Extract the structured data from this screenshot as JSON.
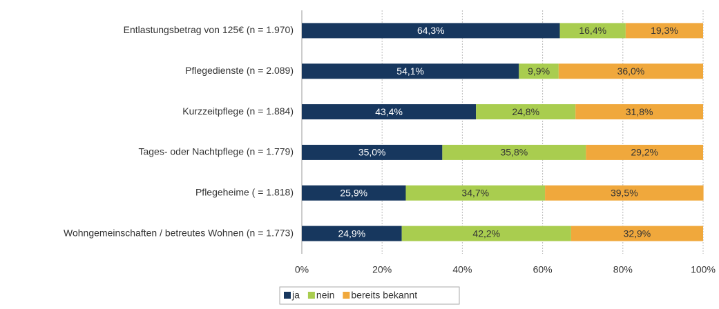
{
  "chart_data": {
    "type": "stacked_bar_horizontal",
    "categories": [
      "Entlastungsbetrag von 125€ (n = 1.970)",
      "Pflegedienste (n = 2.089)",
      "Kurzzeitpflege (n = 1.884)",
      "Tages- oder Nachtpflege (n = 1.779)",
      "Pflegeheime ( = 1.818)",
      "Wohngemeinschaften / betreutes Wohnen (n = 1.773)"
    ],
    "series": [
      {
        "name": "ja",
        "color": "#17375e",
        "values": [
          64.3,
          54.1,
          43.4,
          35.0,
          25.9,
          24.9
        ],
        "value_labels": [
          "64,3%",
          "54,1%",
          "43,4%",
          "35,0%",
          "25,9%",
          "24,9%"
        ]
      },
      {
        "name": "nein",
        "color": "#a9cd4f",
        "values": [
          16.4,
          9.9,
          24.8,
          35.8,
          34.7,
          42.2
        ],
        "value_labels": [
          "16,4%",
          "9,9%",
          "24,8%",
          "35,8%",
          "34,7%",
          "42,2%"
        ]
      },
      {
        "name": "bereits bekannt",
        "color": "#f0a83c",
        "values": [
          19.3,
          36.0,
          31.8,
          29.2,
          39.5,
          32.9
        ],
        "value_labels": [
          "19,3%",
          "36,0%",
          "31,8%",
          "29,2%",
          "39,5%",
          "32,9%"
        ]
      }
    ],
    "xlim": [
      0,
      100
    ],
    "xticks": [
      {
        "value": 0,
        "label": "0%"
      },
      {
        "value": 20,
        "label": "20%"
      },
      {
        "value": 40,
        "label": "40%"
      },
      {
        "value": 60,
        "label": "60%"
      },
      {
        "value": 80,
        "label": "80%"
      },
      {
        "value": 100,
        "label": "100%"
      }
    ],
    "grid": true,
    "legend": "bottom"
  }
}
